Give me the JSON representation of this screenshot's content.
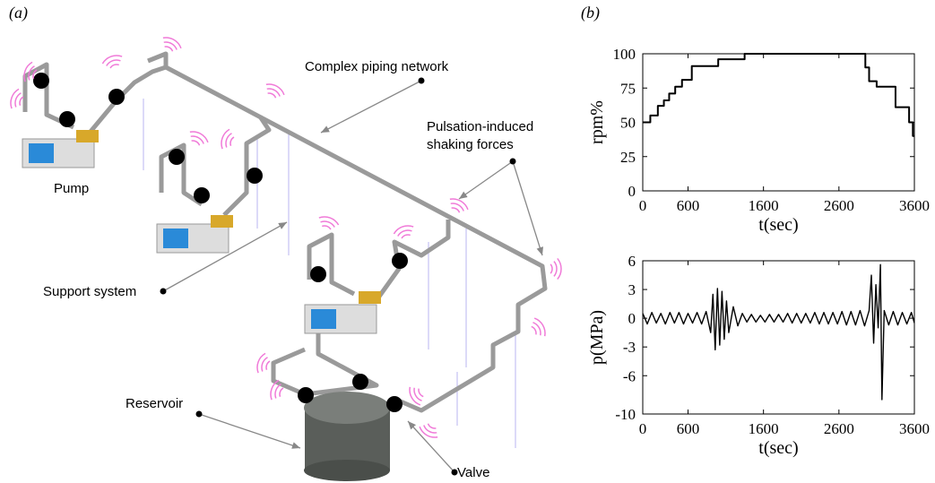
{
  "panels": [
    "(a)",
    "(b)"
  ],
  "diagram": {
    "labels": [
      "Complex piping network",
      "Pulsation-induced",
      "shaking forces",
      "Pump",
      "Support system",
      "Reservoir",
      "Valve"
    ]
  },
  "chart_data": [
    {
      "type": "line",
      "xlabel": "t(sec)",
      "ylabel": "rpm%",
      "x": [
        0,
        100,
        100,
        200,
        200,
        280,
        280,
        350,
        350,
        430,
        430,
        520,
        520,
        650,
        650,
        1000,
        1000,
        1350,
        1350,
        2950,
        2950,
        3000,
        3000,
        3100,
        3100,
        3350,
        3350,
        3530,
        3530,
        3580,
        3580,
        3600
      ],
      "series": [
        {
          "name": "rpm%",
          "color": "#000000",
          "values": [
            50,
            50,
            55,
            55,
            62,
            62,
            66,
            66,
            71,
            71,
            76,
            76,
            81,
            81,
            91,
            91,
            96,
            96,
            100,
            100,
            90,
            90,
            80,
            80,
            76,
            76,
            61,
            61,
            50,
            50,
            40,
            40
          ]
        }
      ],
      "xlim": [
        0,
        3600
      ],
      "xticks": [
        0,
        600,
        1600,
        2600,
        3600
      ],
      "ylim": [
        0,
        100
      ],
      "yticks": [
        0,
        25,
        50,
        75,
        100
      ]
    },
    {
      "type": "line",
      "xlabel": "t(sec)",
      "ylabel": "p(MPa)",
      "x": [
        0,
        60,
        120,
        180,
        240,
        300,
        360,
        420,
        480,
        540,
        600,
        660,
        720,
        780,
        840,
        900,
        930,
        960,
        990,
        1020,
        1050,
        1080,
        1110,
        1140,
        1200,
        1260,
        1320,
        1380,
        1440,
        1500,
        1560,
        1620,
        1680,
        1740,
        1800,
        1860,
        1920,
        1980,
        2040,
        2100,
        2160,
        2220,
        2280,
        2340,
        2400,
        2460,
        2520,
        2580,
        2640,
        2700,
        2760,
        2820,
        2880,
        2940,
        3000,
        3030,
        3060,
        3090,
        3120,
        3150,
        3170,
        3200,
        3260,
        3320,
        3380,
        3440,
        3500,
        3560,
        3600
      ],
      "series": [
        {
          "name": "p(MPa)",
          "color": "#000000",
          "values": [
            0.5,
            -0.6,
            0.6,
            -0.5,
            0.5,
            -0.6,
            0.6,
            -0.5,
            0.6,
            -0.6,
            0.5,
            -0.5,
            0.6,
            -0.6,
            0.7,
            -1.5,
            2.5,
            -3.3,
            3.1,
            -2.8,
            2.8,
            -2.2,
            1.8,
            -1.5,
            1.2,
            -0.8,
            0.5,
            -0.4,
            0.4,
            -0.4,
            0.3,
            -0.4,
            0.4,
            -0.4,
            0.4,
            -0.4,
            0.5,
            -0.5,
            0.5,
            -0.5,
            0.5,
            -0.5,
            0.6,
            -0.6,
            0.6,
            -0.6,
            0.6,
            -0.6,
            0.7,
            -0.7,
            0.7,
            -0.7,
            0.8,
            -0.8,
            0.8,
            4.5,
            -2.6,
            3.5,
            -1.0,
            5.6,
            -8.5,
            0.8,
            -0.7,
            0.7,
            -0.7,
            0.6,
            -0.6,
            0.6,
            -0.5
          ]
        }
      ],
      "xlim": [
        0,
        3600
      ],
      "xticks": [
        0,
        600,
        1600,
        2600,
        3600
      ],
      "ylim": [
        -10,
        6
      ],
      "yticks": [
        -10,
        -6,
        -3,
        0,
        3,
        6
      ]
    }
  ]
}
